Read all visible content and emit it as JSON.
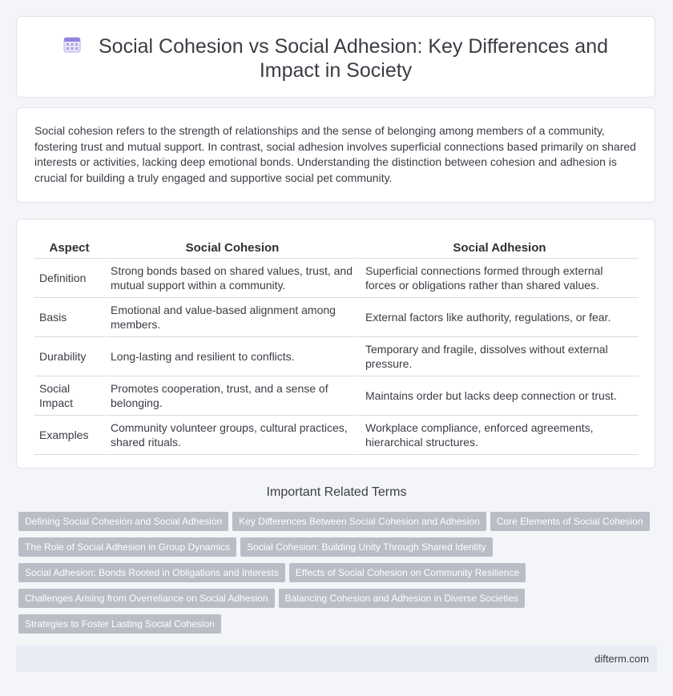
{
  "header": {
    "title": "Social Cohesion vs Social Adhesion: Key Differences and Impact in Society",
    "icon": "calendar-icon"
  },
  "intro": "Social cohesion refers to the strength of relationships and the sense of belonging among members of a community, fostering trust and mutual support. In contrast, social adhesion involves superficial connections based primarily on shared interests or activities, lacking deep emotional bonds. Understanding the distinction between cohesion and adhesion is crucial for building a truly engaged and supportive social pet community.",
  "table": {
    "headers": [
      "Aspect",
      "Social Cohesion",
      "Social Adhesion"
    ],
    "rows": [
      [
        "Definition",
        "Strong bonds based on shared values, trust, and mutual support within a community.",
        "Superficial connections formed through external forces or obligations rather than shared values."
      ],
      [
        "Basis",
        "Emotional and value-based alignment among members.",
        "External factors like authority, regulations, or fear."
      ],
      [
        "Durability",
        "Long-lasting and resilient to conflicts.",
        "Temporary and fragile, dissolves without external pressure."
      ],
      [
        "Social Impact",
        "Promotes cooperation, trust, and a sense of belonging.",
        "Maintains order but lacks deep connection or trust."
      ],
      [
        "Examples",
        "Community volunteer groups, cultural practices, shared rituals.",
        "Workplace compliance, enforced agreements, hierarchical structures."
      ]
    ]
  },
  "related": {
    "title": "Important Related Terms",
    "tags": [
      "Defining Social Cohesion and Social Adhesion",
      "Key Differences Between Social Cohesion and Adhesion",
      "Core Elements of Social Cohesion",
      "The Role of Social Adhesion in Group Dynamics",
      "Social Cohesion: Building Unity Through Shared Identity",
      "Social Adhesion: Bonds Rooted in Obligations and Interests",
      "Effects of Social Cohesion on Community Resilience",
      "Challenges Arising from Overreliance on Social Adhesion",
      "Balancing Cohesion and Adhesion in Diverse Societies",
      "Strategies to Foster Lasting Social Cohesion"
    ]
  },
  "footer": {
    "site": "difterm.com"
  }
}
